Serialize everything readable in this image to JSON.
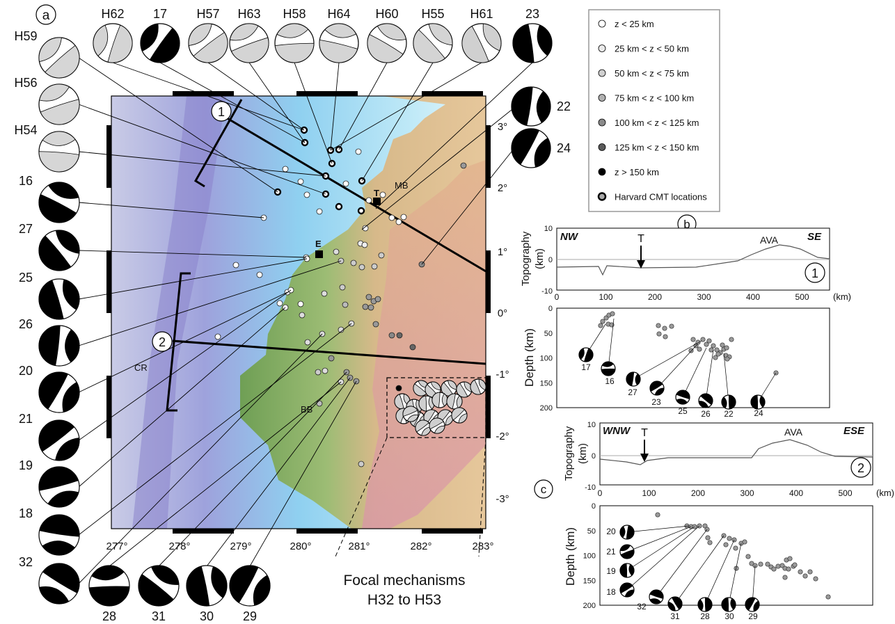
{
  "panels": {
    "a": "a",
    "b": "b",
    "c": "c"
  },
  "map": {
    "lon_ticks": [
      "277°",
      "278°",
      "279°",
      "280°",
      "281°",
      "282°",
      "283°"
    ],
    "lat_ticks": [
      "3°",
      "2°",
      "1°",
      "0°",
      "-1°",
      "-2°",
      "-3°"
    ],
    "place_labels": {
      "MB": "MB",
      "T": "T",
      "E": "E",
      "CR": "CR",
      "BB": "BB"
    },
    "profile_markers": [
      "1",
      "2"
    ],
    "focal_note_line1": "Focal mechanisms",
    "focal_note_line2": "H32  to H53"
  },
  "legend": {
    "items": [
      {
        "label": "z  < 25 km",
        "color": "#ffffff"
      },
      {
        "label": "25 km <  z  < 50 km",
        "color": "#e9e9e9"
      },
      {
        "label": "50 km < z  < 75 km",
        "color": "#cfcfcf"
      },
      {
        "label": "75 km < z  < 100 km",
        "color": "#b0b0b0"
      },
      {
        "label": "100 km < z < 125 km",
        "color": "#8a8a8a"
      },
      {
        "label": "125 km < z < 150 km",
        "color": "#5a5a5a"
      },
      {
        "label": "z > 150 km",
        "color": "#000000"
      },
      {
        "label": "Harvard CMT locations",
        "color": "#aaaaaa"
      }
    ]
  },
  "beachballs": {
    "top": [
      "H62",
      "17",
      "H57",
      "H63",
      "H58",
      "H64",
      "H60",
      "H55",
      "H61",
      "23"
    ],
    "left": [
      "H59",
      "H56",
      "H54",
      "16",
      "27",
      "25",
      "26",
      "20",
      "21",
      "19",
      "18",
      "32"
    ],
    "bottom": [
      "28",
      "31",
      "30",
      "29"
    ],
    "right": [
      "22",
      "24"
    ]
  },
  "profile_b": {
    "corner_left": "NW",
    "corner_right": "SE",
    "trench": "T",
    "ava": "AVA",
    "marker": "1",
    "topo_ylabel_1": "Topography",
    "topo_ylabel_2": "(km)",
    "depth_ylabel": "Depth (km)",
    "topo_yticks": [
      "10",
      "0",
      "-10"
    ],
    "x_ticks": [
      "0",
      "100",
      "200",
      "300",
      "400",
      "500"
    ],
    "x_unit": "(km)",
    "depth_ticks": [
      "0",
      "50",
      "100",
      "150",
      "200"
    ],
    "mech_labels": [
      "17",
      "16",
      "27",
      "23",
      "25",
      "26",
      "22",
      "24"
    ]
  },
  "profile_c": {
    "corner_left": "WNW",
    "corner_right": "ESE",
    "trench": "T",
    "ava": "AVA",
    "marker": "2",
    "topo_ylabel_1": "Topography",
    "topo_ylabel_2": "(km)",
    "depth_ylabel": "Depth (km)",
    "topo_yticks": [
      "10",
      "0",
      "-10"
    ],
    "x_ticks": [
      "0",
      "100",
      "200",
      "300",
      "400",
      "500"
    ],
    "x_unit": "(km)",
    "depth_ticks": [
      "0",
      "50",
      "100",
      "150",
      "200"
    ],
    "mech_labels": [
      "20",
      "21",
      "19",
      "18",
      "32",
      "31",
      "28",
      "30",
      "29"
    ]
  },
  "colors": {
    "ocean_deep": "#8e8fd6",
    "ocean_shelf": "#bfe8f6",
    "lowland": "#7fb36a",
    "highland": "#d8b98a",
    "andes": "#d98fa6",
    "quake_fill": "#9a9a9a"
  }
}
